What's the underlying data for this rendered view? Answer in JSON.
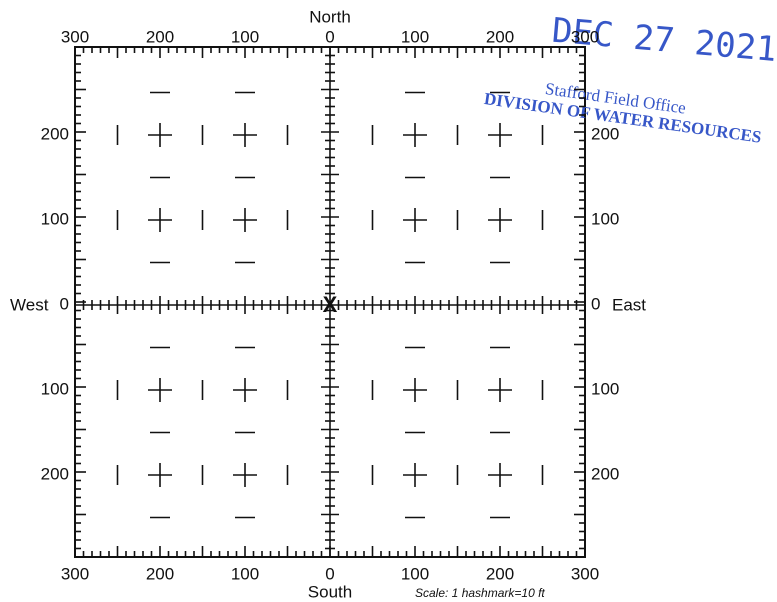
{
  "compass": {
    "north": "North",
    "south": "South",
    "west": "West",
    "east": "East"
  },
  "top_labels": [
    "300",
    "200",
    "100",
    "0",
    "100",
    "200",
    "300"
  ],
  "bottom_labels": [
    "300",
    "200",
    "100",
    "0",
    "100",
    "200",
    "300"
  ],
  "left_labels": [
    "200",
    "100",
    "0",
    "100",
    "200"
  ],
  "right_labels": [
    "200",
    "100",
    "0",
    "100",
    "200"
  ],
  "location_mark": "X",
  "scale_note": "Scale:  1 hashmark=10 ft",
  "stamp": {
    "date": "DEC 27 2021",
    "office": "Stafford Field Office",
    "division": "DIVISION OF WATER RESOURCES"
  }
}
